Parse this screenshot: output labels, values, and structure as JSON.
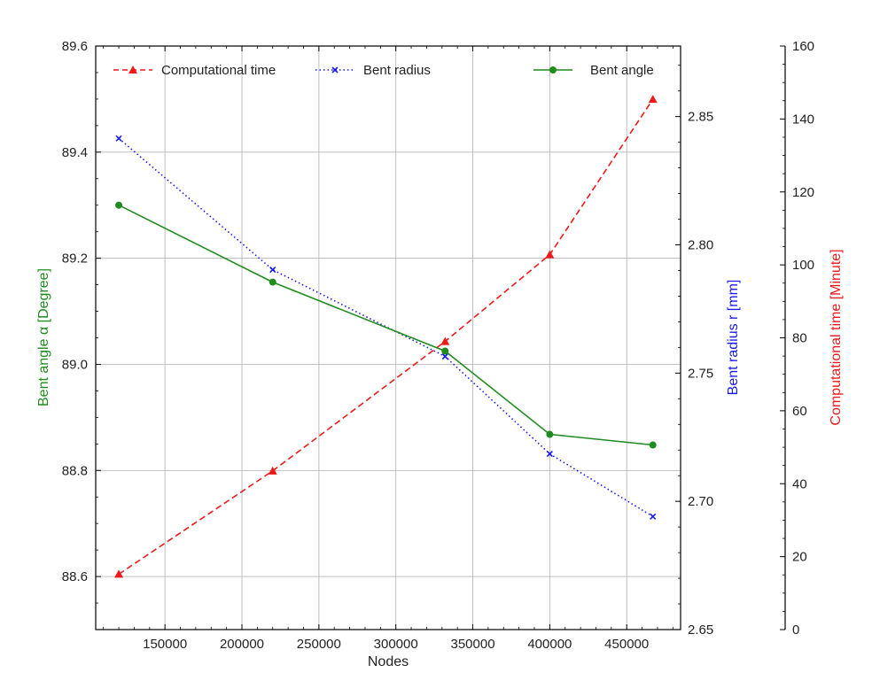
{
  "chart_data": {
    "type": "line",
    "title": "",
    "xlabel": "Nodes",
    "x": [
      120000,
      220000,
      332000,
      400000,
      467000
    ],
    "xlim": [
      105000,
      485000
    ],
    "xticks": [
      150000,
      200000,
      250000,
      300000,
      350000,
      400000,
      450000
    ],
    "xtick_labels": [
      "150000",
      "200000",
      "250000",
      "300000",
      "350000",
      "400000",
      "450000"
    ],
    "grid": true,
    "axes": {
      "left": {
        "label": "Bent angle α [Degree]",
        "color": "#1e8c1e",
        "ylim": [
          88.5,
          89.6
        ],
        "ticks": [
          88.6,
          88.8,
          89.0,
          89.2,
          89.4,
          89.6
        ],
        "tick_labels": [
          "88.6",
          "88.8",
          "89.0",
          "89.2",
          "89.4",
          "89.6"
        ]
      },
      "right_inner": {
        "label": "Bent radius r [mm]",
        "color": "#1a1aee",
        "ylim": [
          2.65,
          2.8775
        ],
        "ticks": [
          2.65,
          2.7,
          2.75,
          2.8,
          2.85
        ],
        "tick_labels": [
          "2.65",
          "2.70",
          "2.75",
          "2.80",
          "2.85"
        ]
      },
      "right_outer": {
        "label": "Computational time [Minute]",
        "color": "#ee1a1a",
        "ylim": [
          0,
          160
        ],
        "ticks": [
          0,
          20,
          40,
          60,
          80,
          100,
          120,
          140,
          160
        ],
        "tick_labels": [
          "0",
          "20",
          "40",
          "60",
          "80",
          "100",
          "120",
          "140",
          "160"
        ]
      }
    },
    "series": [
      {
        "name": "Computational time",
        "axis": "right_outer",
        "color": "#ee1a1a",
        "line_style": "dashed",
        "marker": "triangle",
        "values": [
          15.2,
          43.5,
          79.0,
          102.8,
          145.4
        ]
      },
      {
        "name": "Bent radius",
        "axis": "right_inner",
        "color": "#1a1aee",
        "line_style": "dotted",
        "marker": "x",
        "values": [
          2.8415,
          2.7903,
          2.7565,
          2.7185,
          2.6941
        ]
      },
      {
        "name": "Bent angle",
        "axis": "left",
        "color": "#1e8c1e",
        "line_style": "solid",
        "marker": "circle",
        "values": [
          89.3,
          89.155,
          89.025,
          88.868,
          88.848
        ]
      }
    ],
    "legend": {
      "placement": "top",
      "entries": [
        "Computational time",
        "Bent radius",
        "Bent angle"
      ]
    }
  }
}
